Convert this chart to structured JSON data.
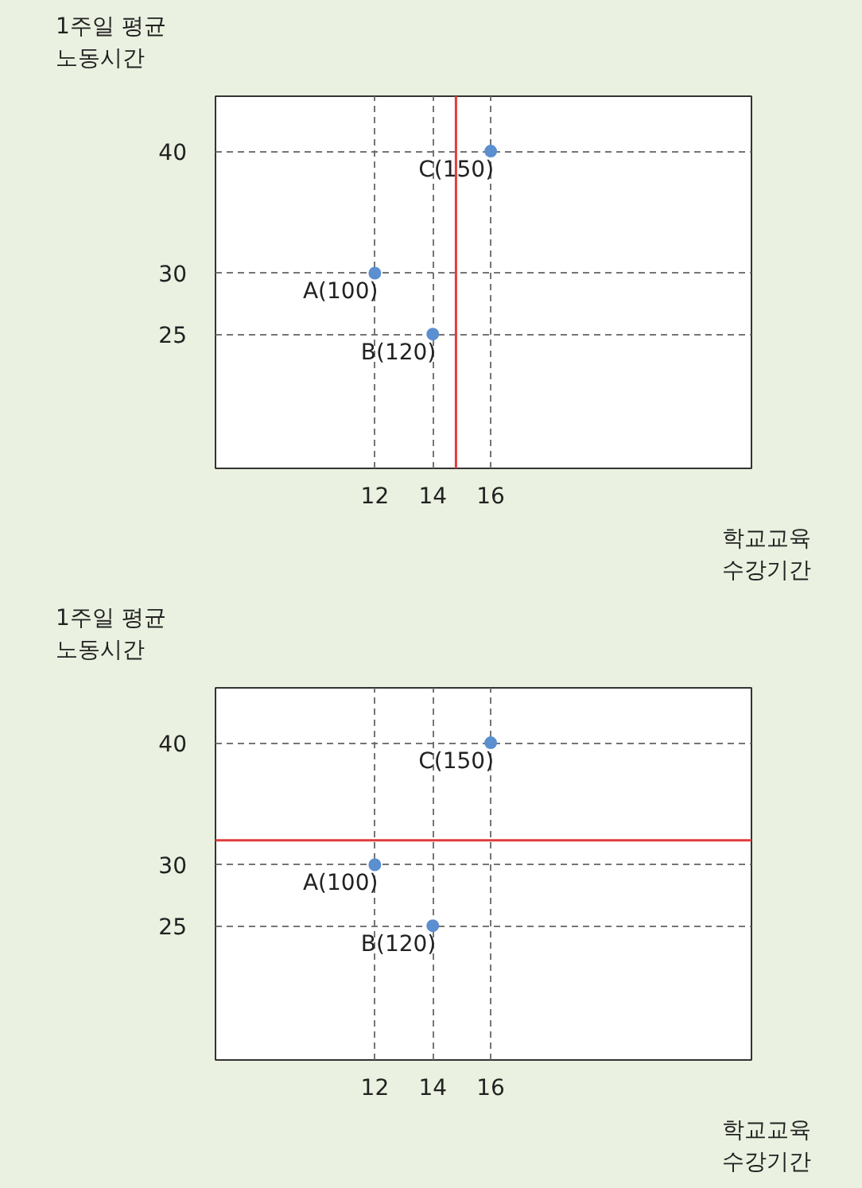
{
  "chart_data": [
    {
      "type": "scatter",
      "xlabel": "학교교육\n수강기간",
      "ylabel": "1주일 평균\n노동시간",
      "x": [
        12,
        14,
        16
      ],
      "values": [
        30,
        25,
        40
      ],
      "color": "#5b8fd0",
      "marker": "circle",
      "grid": true,
      "xlim": [
        6.5,
        25
      ],
      "ylim": [
        14,
        44.5
      ],
      "xticks": [
        12,
        14,
        16
      ],
      "yticks": [
        25,
        30,
        40
      ],
      "annotations": [
        {
          "text": "A(100)",
          "x": 12,
          "y": 30
        },
        {
          "text": "B(120)",
          "x": 14,
          "y": 25
        },
        {
          "text": "C(150)",
          "x": 16,
          "y": 40
        }
      ],
      "ref_lines": [
        {
          "axis": "x",
          "value": 14.8,
          "color": "#e03c3c"
        }
      ]
    },
    {
      "type": "scatter",
      "xlabel": "학교교육\n수강기간",
      "ylabel": "1주일 평균\n노동시간",
      "x": [
        12,
        14,
        16
      ],
      "values": [
        30,
        25,
        40
      ],
      "color": "#5b8fd0",
      "marker": "circle",
      "grid": true,
      "xlim": [
        6.5,
        25
      ],
      "ylim": [
        14,
        44.5
      ],
      "xticks": [
        12,
        14,
        16
      ],
      "yticks": [
        25,
        30,
        40
      ],
      "annotations": [
        {
          "text": "A(100)",
          "x": 12,
          "y": 30
        },
        {
          "text": "B(120)",
          "x": 14,
          "y": 25
        },
        {
          "text": "C(150)",
          "x": 16,
          "y": 40
        }
      ],
      "ref_lines": [
        {
          "axis": "y",
          "value": 32,
          "color": "#e03c3c"
        }
      ]
    }
  ]
}
